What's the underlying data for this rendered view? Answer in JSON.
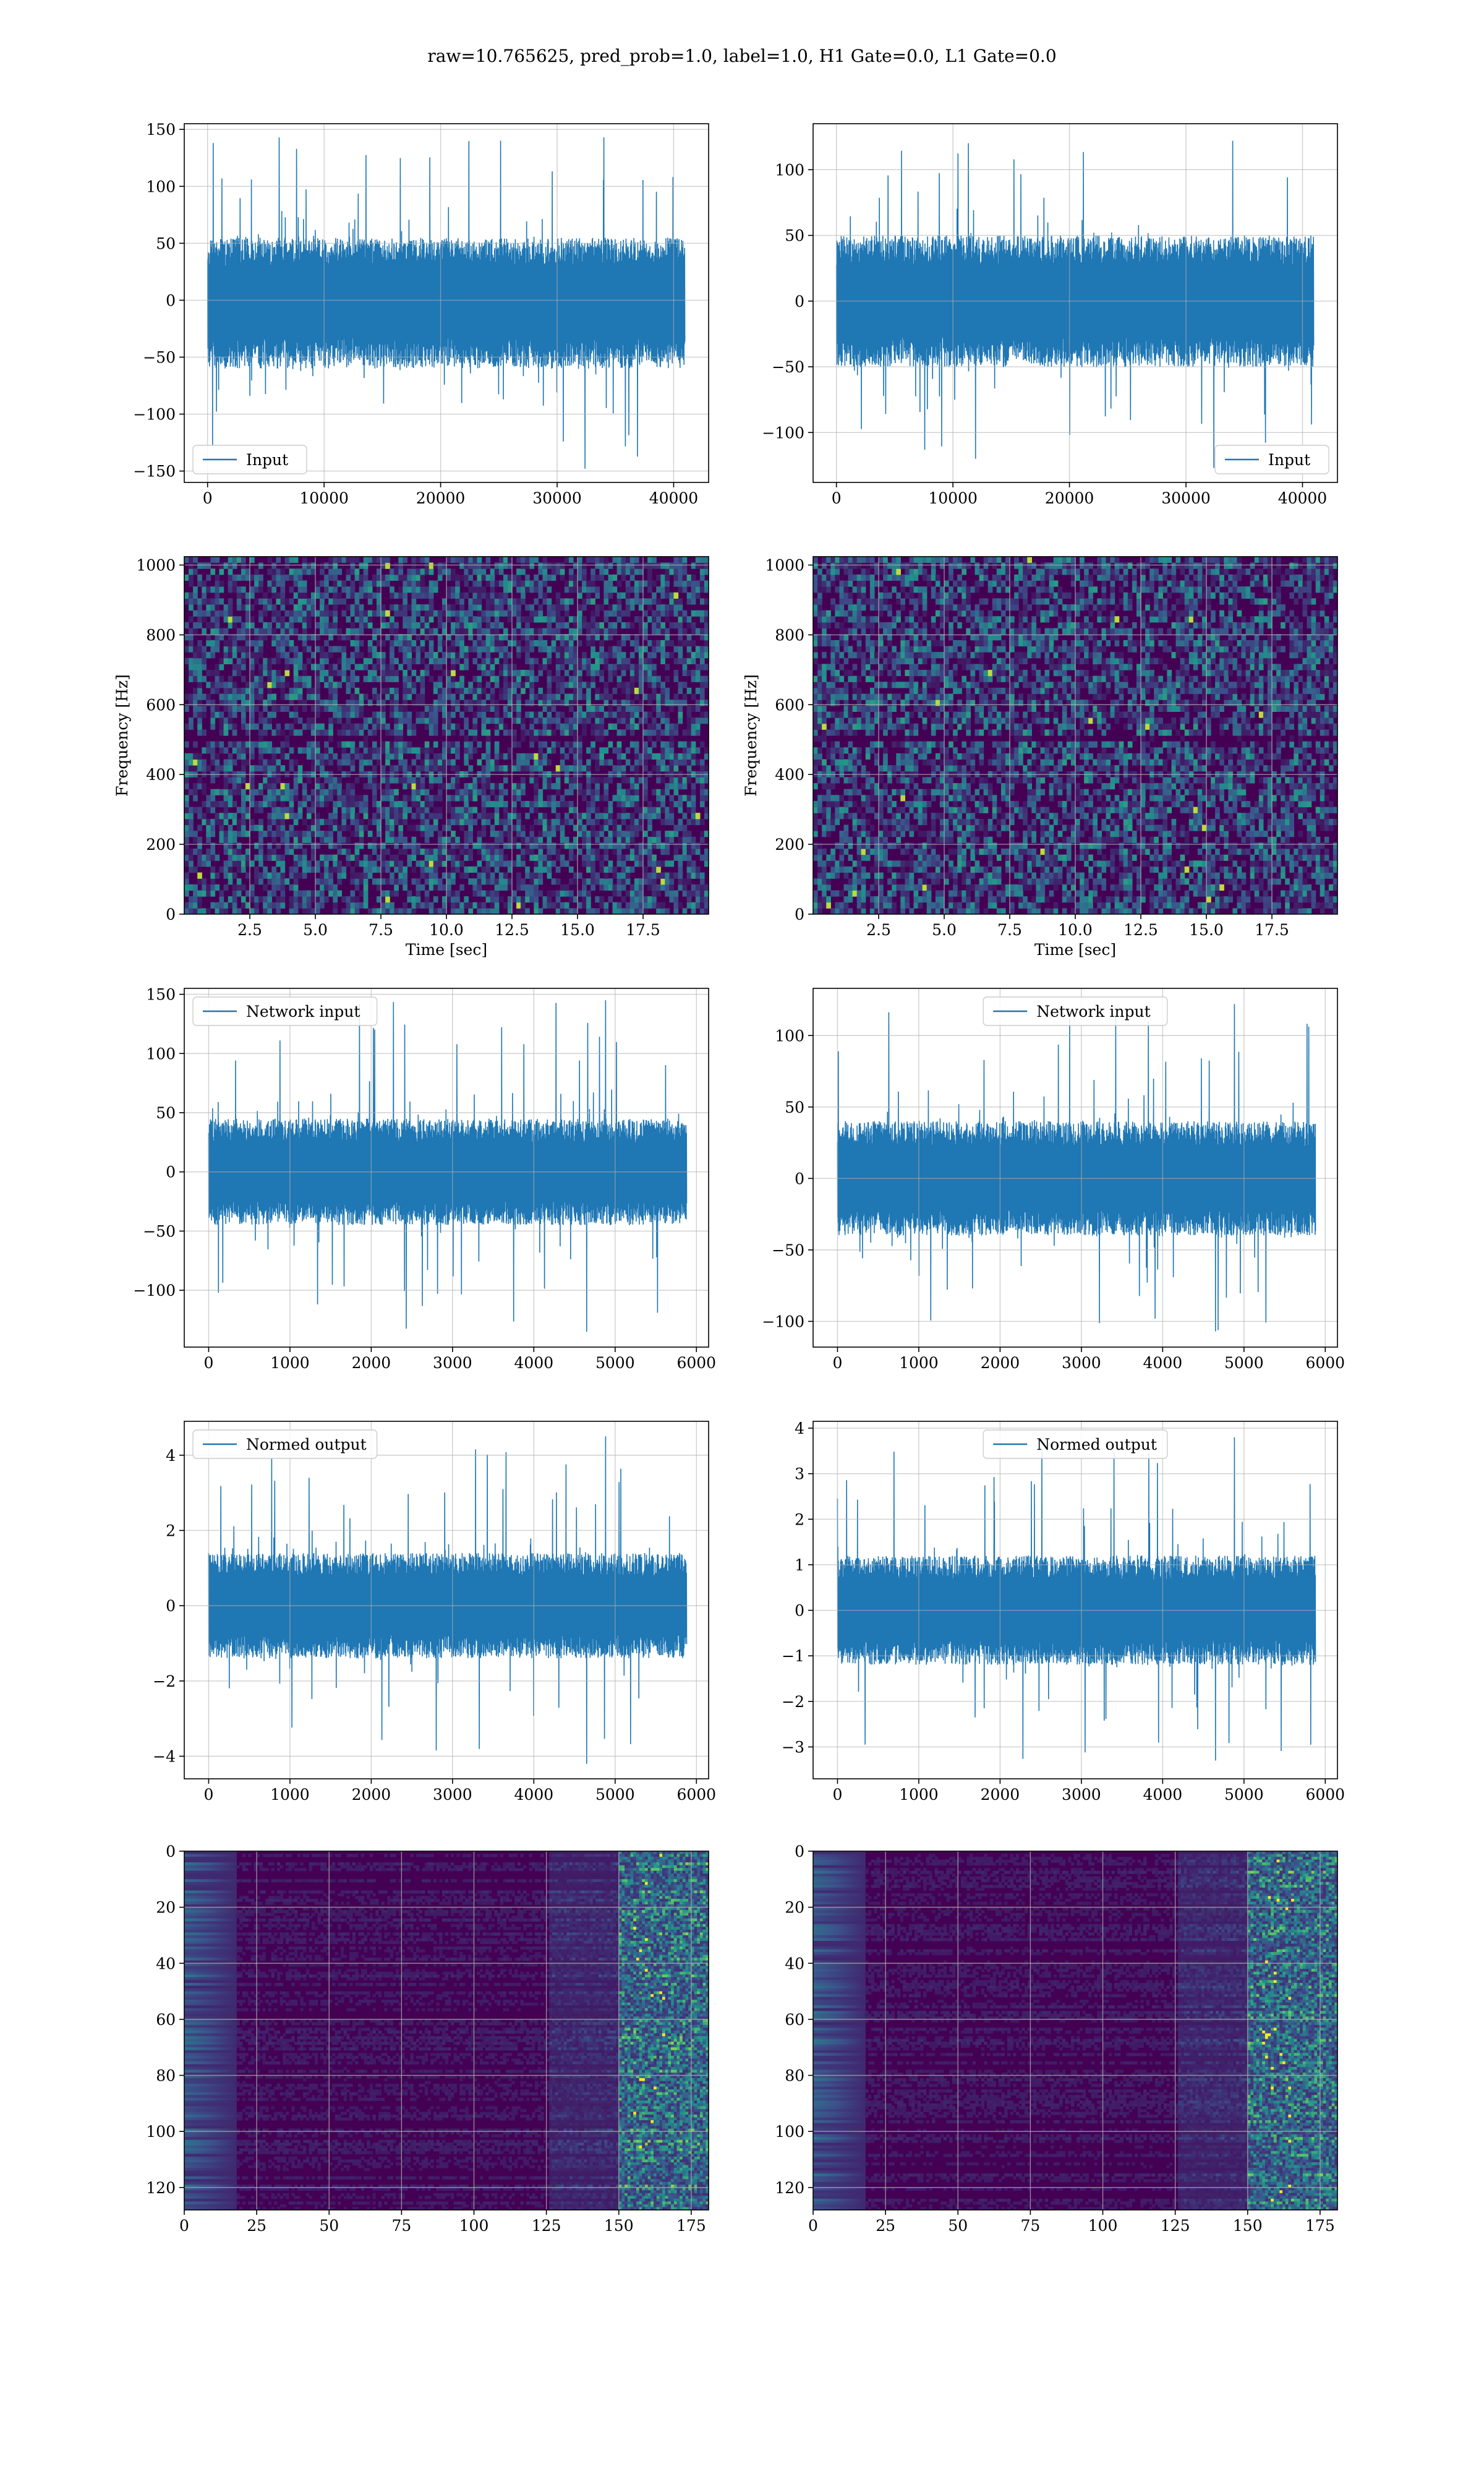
{
  "figure": {
    "title": "raw=10.765625, pred_prob=1.0, label=1.0, H1 Gate=0.0, L1 Gate=0.0"
  },
  "colors": {
    "line": "#1f77b4",
    "grid": "#b0b0b0",
    "viridis_low": "#440154",
    "viridis_high": "#fde725"
  },
  "chart_data": [
    {
      "id": "input-h1",
      "type": "line",
      "row": 0,
      "col": 0,
      "legend": "Input",
      "legend_loc": "lower-left",
      "xlim": [
        -2000,
        43000
      ],
      "ylim": [
        -160,
        155
      ],
      "xticks": [
        0,
        10000,
        20000,
        30000,
        40000
      ],
      "yticks": [
        -150,
        -100,
        -50,
        0,
        50,
        100,
        150
      ],
      "n_samples": 40960,
      "envelope": {
        "x_range": [
          0,
          40960
        ],
        "core": [
          -60,
          55
        ],
        "max": 143,
        "min": -148
      },
      "xlabel": "",
      "ylabel": ""
    },
    {
      "id": "input-l1",
      "type": "line",
      "row": 0,
      "col": 1,
      "legend": "Input",
      "legend_loc": "lower-right",
      "xlim": [
        -2000,
        43000
      ],
      "ylim": [
        -138,
        135
      ],
      "xticks": [
        0,
        10000,
        20000,
        30000,
        40000
      ],
      "yticks": [
        -100,
        -50,
        0,
        50,
        100
      ],
      "n_samples": 40960,
      "envelope": {
        "x_range": [
          0,
          40960
        ],
        "core": [
          -50,
          50
        ],
        "max": 122,
        "min": -127
      },
      "xlabel": "",
      "ylabel": ""
    },
    {
      "id": "spectrogram-h1",
      "type": "heatmap",
      "row": 1,
      "col": 0,
      "xlim": [
        0,
        20
      ],
      "ylim": [
        0,
        1024
      ],
      "xticks": [
        2.5,
        5.0,
        7.5,
        10.0,
        12.5,
        15.0,
        17.5
      ],
      "yticks": [
        0,
        200,
        400,
        600,
        800,
        1000
      ],
      "xlabel": "Time [sec]",
      "ylabel": "Frequency [Hz]",
      "colormap": "viridis",
      "dark_band_hz": 500
    },
    {
      "id": "spectrogram-l1",
      "type": "heatmap",
      "row": 1,
      "col": 1,
      "xlim": [
        0,
        20
      ],
      "ylim": [
        0,
        1024
      ],
      "xticks": [
        2.5,
        5.0,
        7.5,
        10.0,
        12.5,
        15.0,
        17.5
      ],
      "yticks": [
        0,
        200,
        400,
        600,
        800,
        1000
      ],
      "xlabel": "Time [sec]",
      "ylabel": "Frequency [Hz]",
      "colormap": "viridis",
      "dark_band_hz": 500
    },
    {
      "id": "network-input-h1",
      "type": "line",
      "row": 2,
      "col": 0,
      "legend": "Network input",
      "legend_loc": "upper-left",
      "xlim": [
        -300,
        6150
      ],
      "ylim": [
        -148,
        155
      ],
      "xticks": [
        0,
        1000,
        2000,
        3000,
        4000,
        5000,
        6000
      ],
      "yticks": [
        -100,
        -50,
        0,
        50,
        100,
        150
      ],
      "n_samples": 5880,
      "envelope": {
        "x_range": [
          0,
          5880
        ],
        "core": [
          -45,
          45
        ],
        "max": 145,
        "min": -135
      },
      "xlabel": "",
      "ylabel": ""
    },
    {
      "id": "network-input-l1",
      "type": "line",
      "row": 2,
      "col": 1,
      "legend": "Network input",
      "legend_loc": "upper-center",
      "xlim": [
        -300,
        6150
      ],
      "ylim": [
        -118,
        133
      ],
      "xticks": [
        0,
        1000,
        2000,
        3000,
        4000,
        5000,
        6000
      ],
      "yticks": [
        -100,
        -50,
        0,
        50,
        100
      ],
      "n_samples": 5880,
      "envelope": {
        "x_range": [
          0,
          5880
        ],
        "core": [
          -40,
          40
        ],
        "max": 122,
        "min": -107
      },
      "xlabel": "",
      "ylabel": ""
    },
    {
      "id": "normed-output-h1",
      "type": "line",
      "row": 3,
      "col": 0,
      "legend": "Normed output",
      "legend_loc": "upper-left",
      "xlim": [
        -300,
        6150
      ],
      "ylim": [
        -4.6,
        4.9
      ],
      "xticks": [
        0,
        1000,
        2000,
        3000,
        4000,
        5000,
        6000
      ],
      "yticks": [
        -4,
        -2,
        0,
        2,
        4
      ],
      "n_samples": 5880,
      "envelope": {
        "x_range": [
          0,
          5880
        ],
        "core": [
          -1.4,
          1.4
        ],
        "max": 4.5,
        "min": -4.2
      },
      "xlabel": "",
      "ylabel": ""
    },
    {
      "id": "normed-output-l1",
      "type": "line",
      "row": 3,
      "col": 1,
      "legend": "Normed output",
      "legend_loc": "upper-center",
      "xlim": [
        -300,
        6150
      ],
      "ylim": [
        -3.7,
        4.15
      ],
      "xticks": [
        0,
        1000,
        2000,
        3000,
        4000,
        5000,
        6000
      ],
      "yticks": [
        -3,
        -2,
        -1,
        0,
        1,
        2,
        3,
        4
      ],
      "n_samples": 5880,
      "envelope": {
        "x_range": [
          0,
          5880
        ],
        "core": [
          -1.2,
          1.2
        ],
        "max": 3.8,
        "min": -3.3
      },
      "xlabel": "",
      "ylabel": ""
    },
    {
      "id": "feature-map-h1",
      "type": "heatmap",
      "row": 4,
      "col": 0,
      "xlim": [
        0,
        181
      ],
      "ylim": [
        128,
        0
      ],
      "xticks": [
        0,
        25,
        50,
        75,
        100,
        125,
        150,
        175
      ],
      "yticks": [
        0,
        20,
        40,
        60,
        80,
        100,
        120
      ],
      "xlabel": "",
      "ylabel": "",
      "colormap": "viridis",
      "bright_cols": [
        150,
        181
      ]
    },
    {
      "id": "feature-map-l1",
      "type": "heatmap",
      "row": 4,
      "col": 1,
      "xlim": [
        0,
        181
      ],
      "ylim": [
        128,
        0
      ],
      "xticks": [
        0,
        25,
        50,
        75,
        100,
        125,
        150,
        175
      ],
      "yticks": [
        0,
        20,
        40,
        60,
        80,
        100,
        120
      ],
      "xlabel": "",
      "ylabel": "",
      "colormap": "viridis",
      "bright_cols": [
        150,
        181
      ]
    }
  ]
}
